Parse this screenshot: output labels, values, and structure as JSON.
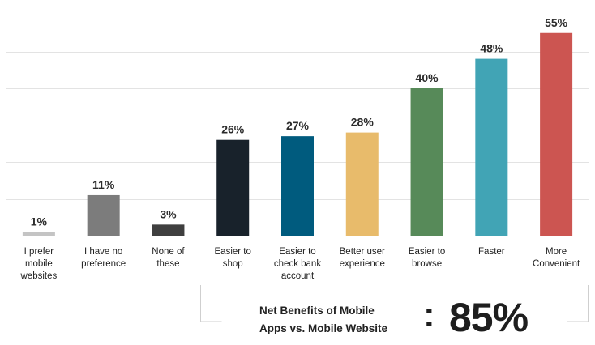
{
  "chart_data": {
    "type": "bar",
    "categories": [
      [
        "I prefer",
        "mobile",
        "websites"
      ],
      [
        "I have no",
        "preference"
      ],
      [
        "None of",
        "these"
      ],
      [
        "Easier to",
        "shop"
      ],
      [
        "Easier to",
        "check bank",
        "account"
      ],
      [
        "Better user",
        "experience"
      ],
      [
        "Easier to",
        "browse"
      ],
      [
        "Faster"
      ],
      [
        "More",
        "Convenient"
      ]
    ],
    "values": [
      1,
      11,
      3,
      26,
      27,
      28,
      40,
      48,
      55
    ],
    "value_labels": [
      "1%",
      "11%",
      "3%",
      "26%",
      "27%",
      "28%",
      "40%",
      "48%",
      "55%"
    ],
    "colors": [
      "#c4c4c4",
      "#7c7c7c",
      "#3f3f3f",
      "#18222b",
      "#005b7e",
      "#e8bb6b",
      "#578a59",
      "#41a4b5",
      "#cc5551"
    ],
    "ylim": [
      0,
      60
    ],
    "grid": true,
    "bracketed_categories": [
      3,
      8
    ]
  },
  "net_benefits": {
    "line1": "Net Benefits of Mobile",
    "line2": "Apps vs. Mobile Website",
    "colon": ":",
    "value": "85%"
  }
}
